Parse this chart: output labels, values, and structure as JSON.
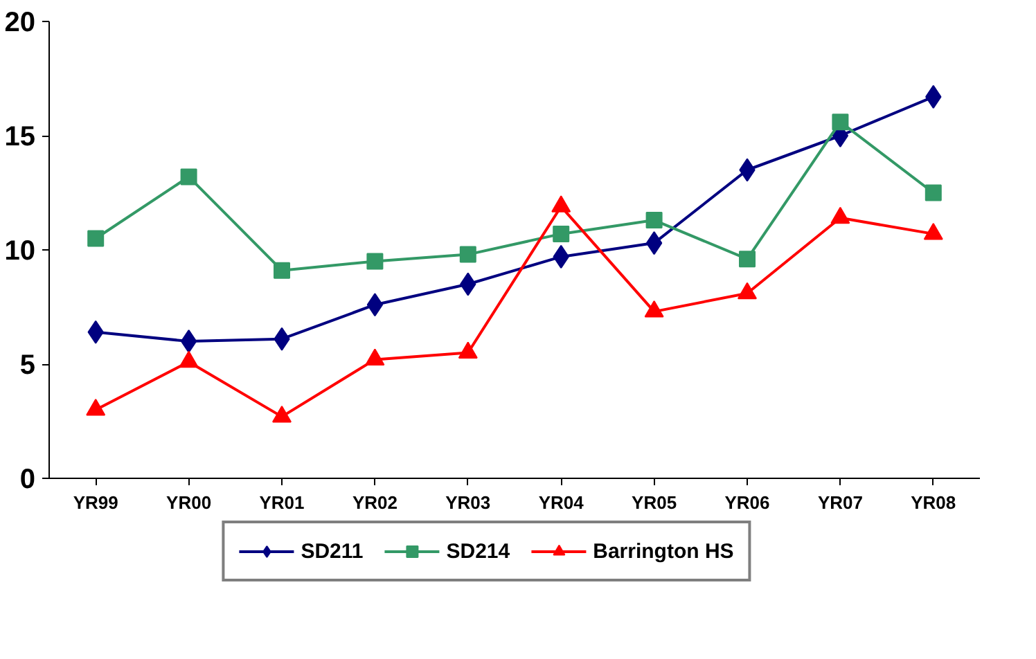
{
  "chart_data": {
    "type": "line",
    "categories": [
      "YR99",
      "YR00",
      "YR01",
      "YR02",
      "YR03",
      "YR04",
      "YR05",
      "YR06",
      "YR07",
      "YR08"
    ],
    "series": [
      {
        "name": "SD211",
        "color": "#000080",
        "marker": "diamond",
        "values": [
          6.4,
          6.0,
          6.1,
          7.6,
          8.5,
          9.7,
          10.3,
          13.5,
          15.0,
          16.7
        ]
      },
      {
        "name": "SD214",
        "color": "#339966",
        "marker": "square",
        "values": [
          10.5,
          13.2,
          9.1,
          9.5,
          9.8,
          10.7,
          11.3,
          9.6,
          15.6,
          12.5
        ]
      },
      {
        "name": "Barrington HS",
        "color": "#ff0000",
        "marker": "triangle",
        "values": [
          3.0,
          5.1,
          2.7,
          5.2,
          5.5,
          11.9,
          7.3,
          8.1,
          11.4,
          10.7
        ]
      }
    ],
    "ylim": [
      0,
      20
    ],
    "yticks": [
      0,
      5,
      10,
      15,
      20
    ],
    "grid": false,
    "legend": "bottom",
    "line_style": "solid"
  }
}
